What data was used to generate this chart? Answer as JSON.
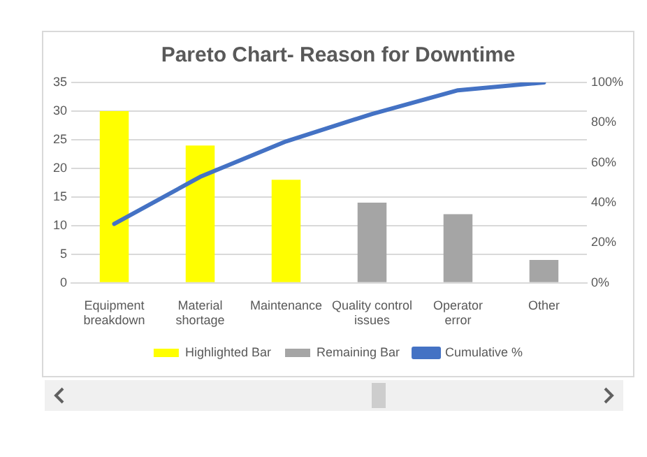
{
  "chart_data": {
    "type": "bar",
    "title": "Pareto Chart- Reason for Downtime",
    "categories": [
      "Equipment breakdown",
      "Material shortage",
      "Maintenance",
      "Quality control issues",
      "Operator error",
      "Other"
    ],
    "series": [
      {
        "name": "Highlighted Bar",
        "color": "#ffff00",
        "values": [
          30,
          24,
          18,
          null,
          null,
          null
        ]
      },
      {
        "name": "Remaining Bar",
        "color": "#a5a5a5",
        "values": [
          null,
          null,
          null,
          14,
          12,
          4
        ]
      },
      {
        "name": "Cumulative %",
        "type": "line",
        "axis": "y2",
        "color": "#4472c4",
        "values": [
          29.4,
          52.9,
          70.6,
          84.3,
          96.1,
          100
        ]
      }
    ],
    "ylim": [
      0,
      35
    ],
    "yticks": [
      0,
      5,
      10,
      15,
      20,
      25,
      30,
      35
    ],
    "y2lim": [
      0,
      100
    ],
    "y2ticks": [
      {
        "value": 0,
        "label": "0%"
      },
      {
        "value": 20,
        "label": "20%"
      },
      {
        "value": 40,
        "label": "40%"
      },
      {
        "value": 60,
        "label": "60%"
      },
      {
        "value": 80,
        "label": "80%"
      },
      {
        "value": 100,
        "label": "100%"
      }
    ],
    "grid": "y",
    "legend": "bottom",
    "marker": "none",
    "line_style": "solid"
  }
}
